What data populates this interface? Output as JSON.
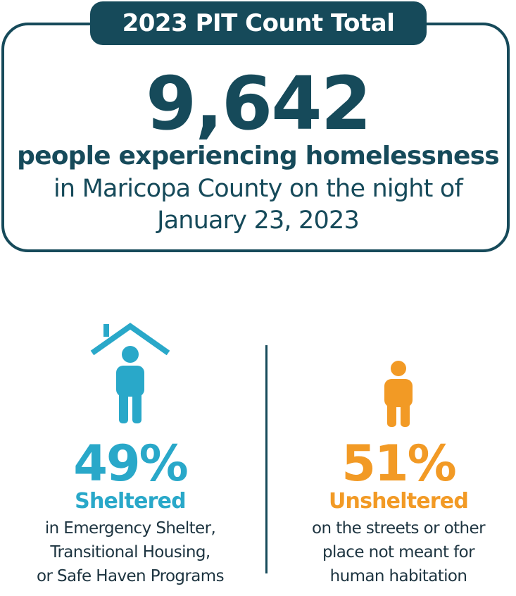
{
  "header": {
    "tag_label": "2023 PIT Count Total",
    "total_count": "9,642",
    "line_bold": "people experiencing homelessness",
    "line_2": "in Maricopa County on the night of",
    "line_3": "January 23, 2023"
  },
  "sheltered": {
    "percent": "49%",
    "label": "Sheltered",
    "desc_lines": [
      "in Emergency Shelter,",
      "Transitional Housing,",
      "or Safe Haven Programs"
    ],
    "icon": "person-under-roof-icon",
    "color": "#29a8c9"
  },
  "unsheltered": {
    "percent": "51%",
    "label": "Unsheltered",
    "desc_lines": [
      "on the streets or other",
      "place not meant for",
      "human habitation"
    ],
    "icon": "person-icon",
    "color": "#f29a25"
  },
  "colors": {
    "dark": "#164a5a",
    "teal": "#29a8c9",
    "orange": "#f29a25"
  }
}
